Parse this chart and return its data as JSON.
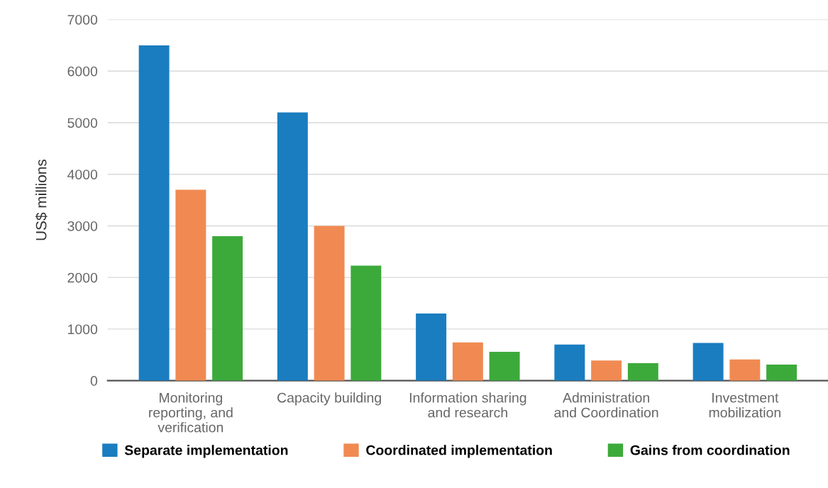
{
  "chart_data": {
    "type": "bar",
    "ylabel": "US$ millions",
    "categories": [
      "Monitoring\nreporting, and\nverification",
      "Capacity building",
      "Information sharing\nand research",
      "Administration\nand Coordination",
      "Investment\nmobilization"
    ],
    "series": [
      {
        "name": "Separate implementation",
        "color": "#1a7dc0",
        "values": [
          6500,
          5200,
          1300,
          700,
          730
        ]
      },
      {
        "name": "Coordinated implementation",
        "color": "#f08a52",
        "values": [
          3700,
          3000,
          740,
          390,
          410
        ]
      },
      {
        "name": "Gains from coordination",
        "color": "#3caa3b",
        "values": [
          2800,
          2230,
          560,
          340,
          310
        ]
      }
    ],
    "ylim": [
      0,
      7000
    ],
    "yticks": [
      0,
      1000,
      2000,
      3000,
      4000,
      5000,
      6000,
      7000
    ],
    "grid": "y",
    "legend": "bottom"
  }
}
